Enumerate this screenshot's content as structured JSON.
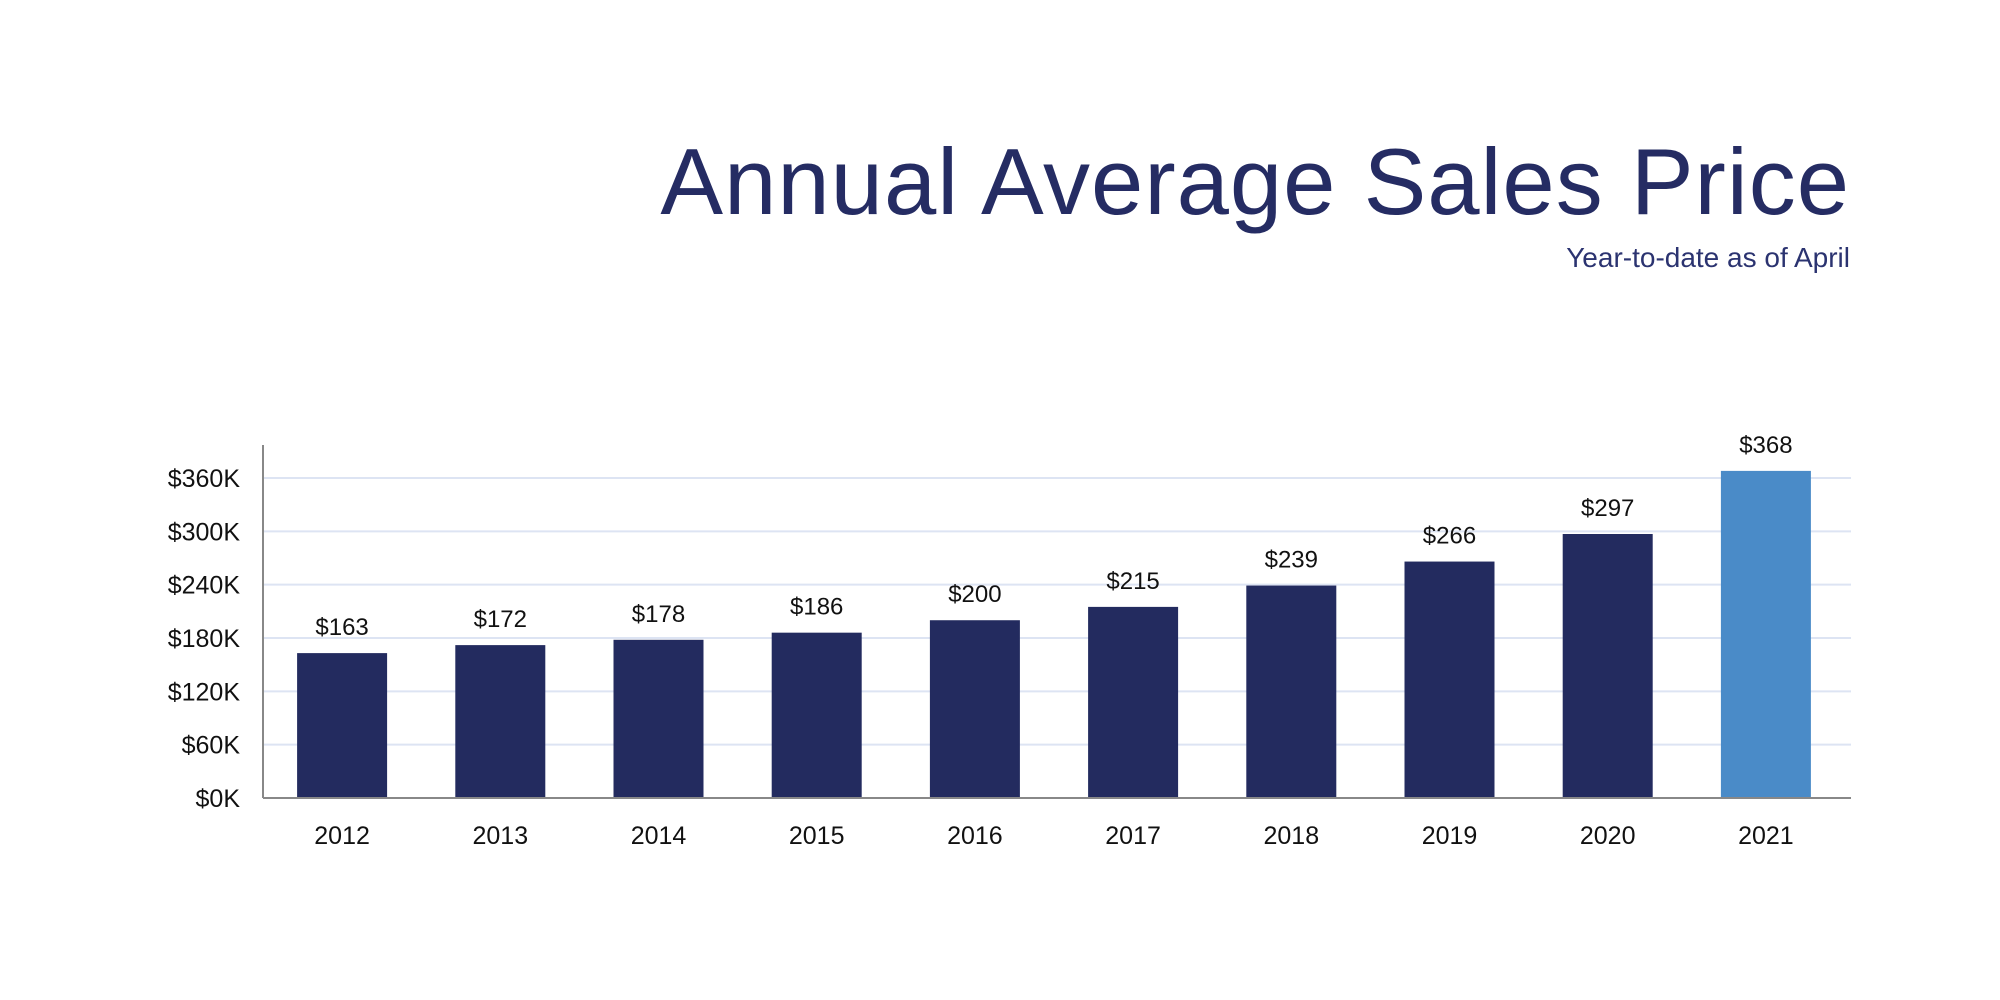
{
  "chart_data": {
    "type": "bar",
    "title": "Annual Average Sales Price",
    "subtitle": "Year-to-date as of April",
    "categories": [
      "2012",
      "2013",
      "2014",
      "2015",
      "2016",
      "2017",
      "2018",
      "2019",
      "2020",
      "2021"
    ],
    "values": [
      163,
      172,
      178,
      186,
      200,
      215,
      239,
      266,
      297,
      368
    ],
    "data_labels": [
      "$163",
      "$172",
      "$178",
      "$186",
      "$200",
      "$215",
      "$239",
      "$266",
      "$297",
      "$368"
    ],
    "value_unit": "thousands of dollars",
    "ylim": [
      0,
      390
    ],
    "yticks": [
      0,
      60,
      120,
      180,
      240,
      300,
      360
    ],
    "ytick_labels": [
      "$0K",
      "$60K",
      "$120K",
      "$180K",
      "$240K",
      "$300K",
      "$360K"
    ],
    "grid": true,
    "colors": {
      "default": "#232b5f",
      "highlight": "#4a8bc8",
      "title": "#252c63",
      "grid": "#dde4f3",
      "axis": "#888888"
    },
    "highlight_category": "2021"
  }
}
